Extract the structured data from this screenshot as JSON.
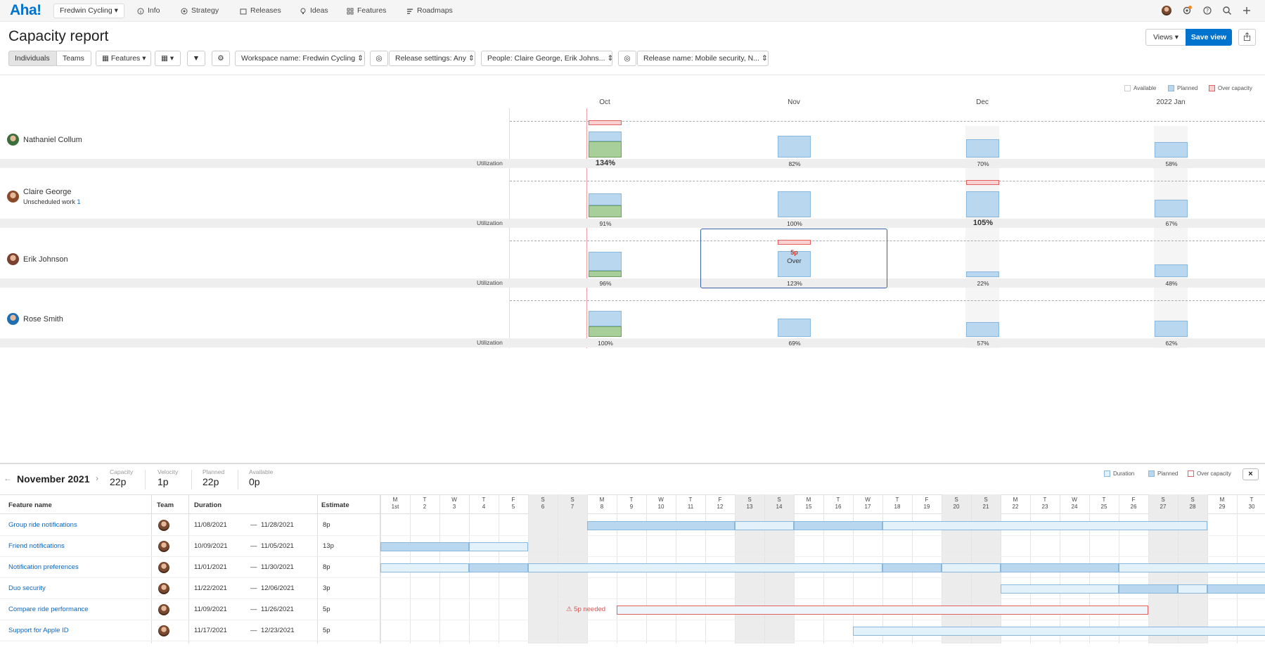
{
  "app": {
    "logo": "Aha!",
    "workspace": "Fredwin Cycling"
  },
  "nav": [
    "Info",
    "Strategy",
    "Releases",
    "Ideas",
    "Features",
    "Roadmaps"
  ],
  "page": {
    "title": "Capacity report",
    "views": "Views",
    "save_view": "Save view"
  },
  "toolbar": {
    "individuals": "Individuals",
    "teams": "Teams",
    "features": "Features",
    "filters": [
      "Workspace name: Fredwin Cycling",
      "Release settings: Any",
      "People: Claire George, Erik Johns...",
      "Release name: Mobile security, N..."
    ]
  },
  "legend_top": [
    "Available",
    "Planned",
    "Over capacity"
  ],
  "months": [
    "Oct",
    "Nov",
    "Dec",
    "2022 Jan"
  ],
  "util_label": "Utilization",
  "people": [
    {
      "name": "Nathaniel Collum",
      "sub": "",
      "sub_count": "",
      "util": [
        "134%",
        "82%",
        "70%",
        "58%"
      ],
      "bold": [
        0
      ],
      "color": "#3b6e3a"
    },
    {
      "name": "Claire George",
      "sub": "Unscheduled work",
      "sub_count": "1",
      "util": [
        "91%",
        "100%",
        "105%",
        "67%"
      ],
      "bold": [
        2
      ],
      "color": "#8a4a2a"
    },
    {
      "name": "Erik Johnson",
      "sub": "",
      "sub_count": "",
      "util": [
        "96%",
        "123%",
        "22%",
        "48%"
      ],
      "bold": [],
      "color": "#7a4030"
    },
    {
      "name": "Rose Smith",
      "sub": "",
      "sub_count": "",
      "util": [
        "100%",
        "69%",
        "57%",
        "62%"
      ],
      "bold": [],
      "color": "#1f6fb0"
    }
  ],
  "over_card": {
    "value": "5p",
    "label": "Over"
  },
  "detail": {
    "month": "November 2021",
    "stats": [
      {
        "label": "Capacity",
        "value": "22p"
      },
      {
        "label": "Velocity",
        "value": "1p"
      },
      {
        "label": "Planned",
        "value": "22p"
      },
      {
        "label": "Available",
        "value": "0p"
      }
    ],
    "legend": [
      "Duration",
      "Planned",
      "Over capacity"
    ],
    "close": "×"
  },
  "gantt": {
    "headers": [
      "Feature name",
      "Team",
      "Duration",
      "Estimate"
    ],
    "days": [
      [
        "M",
        "1st"
      ],
      [
        "T",
        "2"
      ],
      [
        "W",
        "3"
      ],
      [
        "T",
        "4"
      ],
      [
        "F",
        "5"
      ],
      [
        "S",
        "6"
      ],
      [
        "S",
        "7"
      ],
      [
        "M",
        "8"
      ],
      [
        "T",
        "9"
      ],
      [
        "W",
        "10"
      ],
      [
        "T",
        "11"
      ],
      [
        "F",
        "12"
      ],
      [
        "S",
        "13"
      ],
      [
        "S",
        "14"
      ],
      [
        "M",
        "15"
      ],
      [
        "T",
        "16"
      ],
      [
        "W",
        "17"
      ],
      [
        "T",
        "18"
      ],
      [
        "F",
        "19"
      ],
      [
        "S",
        "20"
      ],
      [
        "S",
        "21"
      ],
      [
        "M",
        "22"
      ],
      [
        "T",
        "23"
      ],
      [
        "W",
        "24"
      ],
      [
        "T",
        "25"
      ],
      [
        "F",
        "26"
      ],
      [
        "S",
        "27"
      ],
      [
        "S",
        "28"
      ],
      [
        "M",
        "29"
      ],
      [
        "T",
        "30"
      ]
    ],
    "rows": [
      {
        "name": "Group ride notifications",
        "start": "11/08/2021",
        "end": "11/28/2021",
        "estimate": "8p",
        "warn": ""
      },
      {
        "name": "Friend notifications",
        "start": "10/09/2021",
        "end": "11/05/2021",
        "estimate": "13p",
        "warn": ""
      },
      {
        "name": "Notification preferences",
        "start": "11/01/2021",
        "end": "11/30/2021",
        "estimate": "8p",
        "warn": ""
      },
      {
        "name": "Duo security",
        "start": "11/22/2021",
        "end": "12/06/2021",
        "estimate": "3p",
        "warn": ""
      },
      {
        "name": "Compare ride performance",
        "start": "11/09/2021",
        "end": "11/26/2021",
        "estimate": "5p",
        "warn": "⚠ 5p needed"
      },
      {
        "name": "Support for Apple ID",
        "start": "11/17/2021",
        "end": "12/23/2021",
        "estimate": "5p",
        "warn": ""
      }
    ]
  }
}
